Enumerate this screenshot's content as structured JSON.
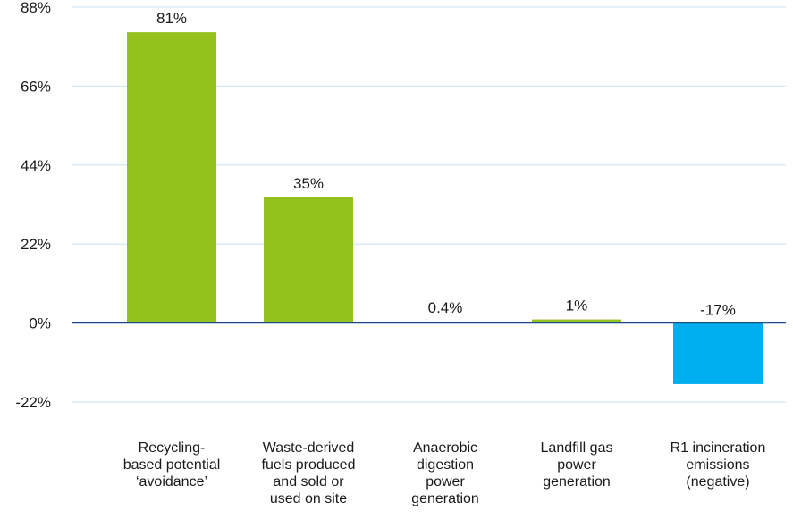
{
  "chart_data": {
    "type": "bar",
    "title": "",
    "xlabel": "",
    "ylabel": "",
    "ylim": [
      -22,
      88
    ],
    "yticks": [
      88,
      66,
      44,
      22,
      0,
      -22
    ],
    "ytick_labels": [
      "88%",
      "66%",
      "44%",
      "22%",
      "0%",
      "-22%"
    ],
    "grid": true,
    "legend": "none",
    "categories": [
      "Recycling-based potential ‘avoidance’",
      "Waste-derived fuels produced and sold or used on site",
      "Anaerobic digestion power generation",
      "Landfill gas power generation",
      "R1 incineration emissions (negative)"
    ],
    "category_lines": [
      [
        "Recycling-",
        "based potential",
        "‘avoidance’"
      ],
      [
        "Waste-derived",
        "fuels produced",
        "and sold or",
        "used on site"
      ],
      [
        "Anaerobic",
        "digestion",
        "power",
        "generation"
      ],
      [
        "Landfill gas",
        "power",
        "generation"
      ],
      [
        "R1 incineration",
        "emissions",
        "(negative)"
      ]
    ],
    "values": [
      81,
      35,
      0.4,
      1,
      -17
    ],
    "value_labels": [
      "81%",
      "35%",
      "0.4%",
      "1%",
      "-17%"
    ],
    "colors": {
      "positive": "#95c11f",
      "negative": "#00aeef",
      "grid": "#c8e2ee",
      "zero_axis": "#1b4f8a",
      "text": "#1a1a1a"
    }
  }
}
